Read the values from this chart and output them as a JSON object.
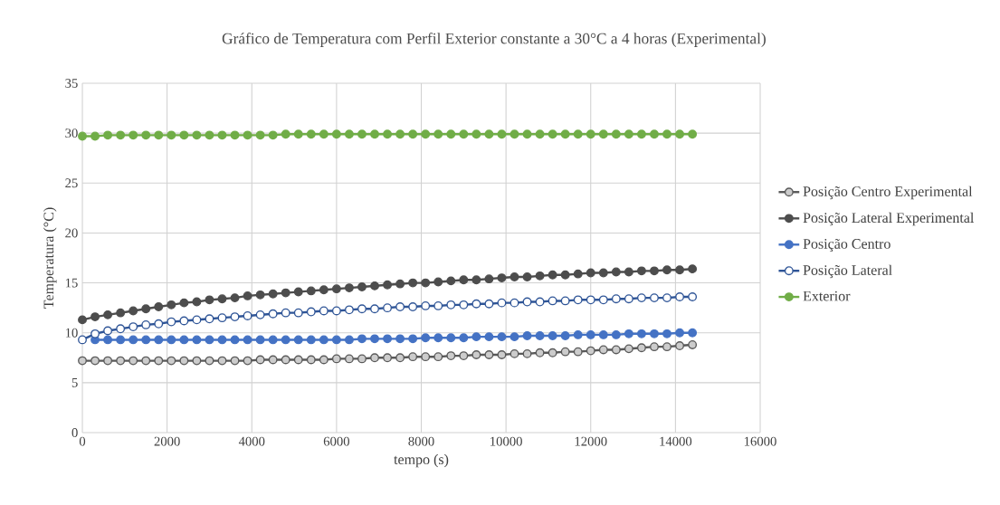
{
  "chart_data": {
    "type": "line",
    "title": "Gráfico de Temperatura com Perfil Exterior constante a 30°C a 4 horas (Experimental)",
    "xlabel": "tempo (s)",
    "ylabel": "Temperatura (°C)",
    "x": [
      0,
      300,
      600,
      900,
      1200,
      1500,
      1800,
      2100,
      2400,
      2700,
      3000,
      3300,
      3600,
      3900,
      4200,
      4500,
      4800,
      5100,
      5400,
      5700,
      6000,
      6300,
      6600,
      6900,
      7200,
      7500,
      7800,
      8100,
      8400,
      8700,
      9000,
      9300,
      9600,
      9900,
      10200,
      10500,
      10800,
      11100,
      11400,
      11700,
      12000,
      12300,
      12600,
      12900,
      13200,
      13500,
      13800,
      14100,
      14400
    ],
    "series": [
      {
        "name": "Posição Centro Experimental",
        "color": "#595959",
        "values": [
          7.2,
          7.2,
          7.2,
          7.2,
          7.2,
          7.2,
          7.2,
          7.2,
          7.2,
          7.2,
          7.2,
          7.2,
          7.2,
          7.2,
          7.3,
          7.3,
          7.3,
          7.3,
          7.3,
          7.3,
          7.4,
          7.4,
          7.4,
          7.5,
          7.5,
          7.5,
          7.6,
          7.6,
          7.6,
          7.7,
          7.7,
          7.8,
          7.8,
          7.8,
          7.9,
          7.9,
          8.0,
          8.0,
          8.1,
          8.1,
          8.2,
          8.3,
          8.3,
          8.4,
          8.5,
          8.6,
          8.6,
          8.7,
          8.8
        ]
      },
      {
        "name": "Posição Lateral Experimental",
        "color": "#4d4d4d",
        "values": [
          11.3,
          11.6,
          11.8,
          12.0,
          12.2,
          12.4,
          12.6,
          12.8,
          13.0,
          13.1,
          13.3,
          13.4,
          13.5,
          13.7,
          13.8,
          13.9,
          14.0,
          14.1,
          14.2,
          14.3,
          14.4,
          14.5,
          14.6,
          14.7,
          14.8,
          14.9,
          15.0,
          15.0,
          15.1,
          15.2,
          15.3,
          15.3,
          15.4,
          15.5,
          15.6,
          15.6,
          15.7,
          15.8,
          15.8,
          15.9,
          16.0,
          16.0,
          16.1,
          16.1,
          16.2,
          16.2,
          16.3,
          16.3,
          16.4
        ]
      },
      {
        "name": "Posição Centro",
        "color": "#4472c4",
        "values": [
          null,
          9.3,
          9.3,
          9.3,
          9.3,
          9.3,
          9.3,
          9.3,
          9.3,
          9.3,
          9.3,
          9.3,
          9.3,
          9.3,
          9.3,
          9.3,
          9.3,
          9.3,
          9.3,
          9.3,
          9.3,
          9.3,
          9.4,
          9.4,
          9.4,
          9.4,
          9.4,
          9.5,
          9.5,
          9.5,
          9.5,
          9.6,
          9.6,
          9.6,
          9.6,
          9.7,
          9.7,
          9.7,
          9.7,
          9.8,
          9.8,
          9.8,
          9.8,
          9.9,
          9.9,
          9.9,
          9.9,
          10.0,
          10.0
        ]
      },
      {
        "name": "Posição Lateral",
        "color": "#2f5597",
        "values": [
          9.3,
          9.9,
          10.2,
          10.4,
          10.6,
          10.8,
          10.9,
          11.1,
          11.2,
          11.3,
          11.4,
          11.5,
          11.6,
          11.7,
          11.8,
          11.9,
          12.0,
          12.0,
          12.1,
          12.2,
          12.2,
          12.3,
          12.4,
          12.4,
          12.5,
          12.6,
          12.6,
          12.7,
          12.7,
          12.8,
          12.8,
          12.9,
          12.9,
          13.0,
          13.0,
          13.1,
          13.1,
          13.2,
          13.2,
          13.3,
          13.3,
          13.3,
          13.4,
          13.4,
          13.5,
          13.5,
          13.5,
          13.6,
          13.6
        ]
      },
      {
        "name": "Exterior",
        "color": "#70ad47",
        "values": [
          29.7,
          29.7,
          29.8,
          29.8,
          29.8,
          29.8,
          29.8,
          29.8,
          29.8,
          29.8,
          29.8,
          29.8,
          29.8,
          29.8,
          29.8,
          29.8,
          29.9,
          29.9,
          29.9,
          29.9,
          29.9,
          29.9,
          29.9,
          29.9,
          29.9,
          29.9,
          29.9,
          29.9,
          29.9,
          29.9,
          29.9,
          29.9,
          29.9,
          29.9,
          29.9,
          29.9,
          29.9,
          29.9,
          29.9,
          29.9,
          29.9,
          29.9,
          29.9,
          29.9,
          29.9,
          29.9,
          29.9,
          29.9,
          29.9
        ]
      }
    ],
    "xlim": [
      0,
      16000
    ],
    "ylim": [
      0,
      35
    ],
    "xticks": [
      0,
      2000,
      4000,
      6000,
      8000,
      10000,
      12000,
      14000,
      16000
    ],
    "yticks": [
      0,
      5,
      10,
      15,
      20,
      25,
      30,
      35
    ],
    "grid": true,
    "legend": "right",
    "marker": "circle",
    "line_style": "solid"
  }
}
